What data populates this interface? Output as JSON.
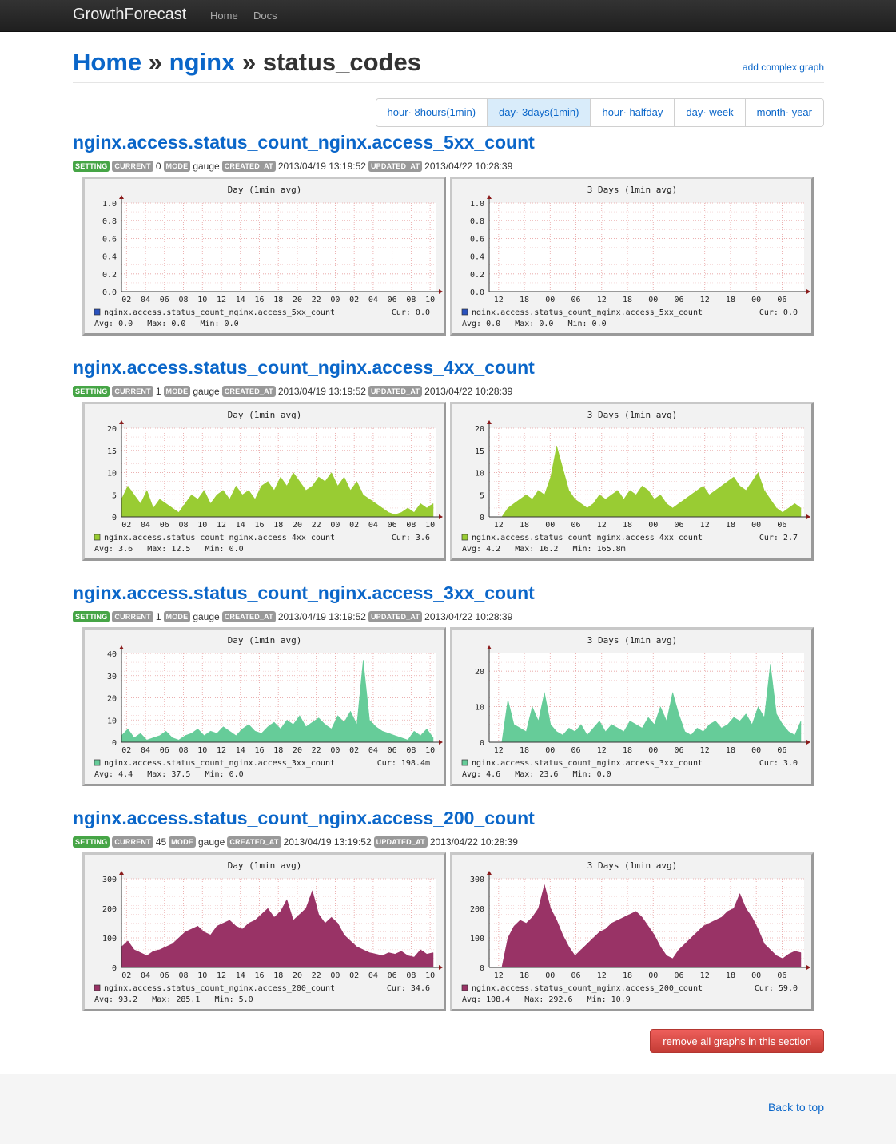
{
  "navbar": {
    "brand": "GrowthForecast",
    "links": [
      "Home",
      "Docs"
    ]
  },
  "page": {
    "breadcrumb": [
      {
        "label": "Home"
      },
      {
        "label": "nginx"
      },
      {
        "label": "status_codes"
      }
    ],
    "separator": "»",
    "add_complex_label": "add complex graph"
  },
  "terms": [
    {
      "label": "hour· 8hours(1min)",
      "active": false
    },
    {
      "label": "day· 3days(1min)",
      "active": true
    },
    {
      "label": "hour· halfday",
      "active": false
    },
    {
      "label": "day· week",
      "active": false
    },
    {
      "label": "month· year",
      "active": false
    }
  ],
  "meta_labels": {
    "setting": "SETTING",
    "current": "CURRENT",
    "mode": "MODE",
    "created": "CREATED_AT",
    "updated": "UPDATED_AT"
  },
  "chart_axes": {
    "day_xticks": [
      "02",
      "04",
      "06",
      "08",
      "10",
      "12",
      "14",
      "16",
      "18",
      "20",
      "22",
      "00",
      "02",
      "04",
      "06",
      "08",
      "10"
    ],
    "threeday_xticks": [
      "12",
      "18",
      "00",
      "06",
      "12",
      "18",
      "00",
      "06",
      "12",
      "18",
      "00",
      "06"
    ],
    "avg_label": "Avg:",
    "max_label": "Max:",
    "min_label": "Min:",
    "cur_label": "Cur:"
  },
  "graphs": [
    {
      "title": "nginx.access.status_count_nginx.access_5xx_count",
      "current": "0",
      "mode": "gauge",
      "created_at": "2013/04/19 13:19:52",
      "updated_at": "2013/04/22 10:28:39",
      "color": "#2a52be",
      "charts": [
        {
          "period_title": "Day (1min avg)",
          "legend": "nginx.access.status_count_nginx.access_5xx_count",
          "cur": "0.0",
          "avg": "0.0",
          "max": "0.0",
          "min": "0.0"
        },
        {
          "period_title": "3 Days (1min avg)",
          "legend": "nginx.access.status_count_nginx.access_5xx_count",
          "cur": "0.0",
          "avg": "0.0",
          "max": "0.0",
          "min": "0.0"
        }
      ]
    },
    {
      "title": "nginx.access.status_count_nginx.access_4xx_count",
      "current": "1",
      "mode": "gauge",
      "created_at": "2013/04/19 13:19:52",
      "updated_at": "2013/04/22 10:28:39",
      "color": "#99cc33",
      "charts": [
        {
          "period_title": "Day (1min avg)",
          "legend": "nginx.access.status_count_nginx.access_4xx_count",
          "cur": "3.6",
          "avg": "3.6",
          "max": "12.5",
          "min": "0.0"
        },
        {
          "period_title": "3 Days (1min avg)",
          "legend": "nginx.access.status_count_nginx.access_4xx_count",
          "cur": "2.7",
          "avg": "4.2",
          "max": "16.2",
          "min": "165.8m"
        }
      ]
    },
    {
      "title": "nginx.access.status_count_nginx.access_3xx_count",
      "current": "1",
      "mode": "gauge",
      "created_at": "2013/04/19 13:19:52",
      "updated_at": "2013/04/22 10:28:39",
      "color": "#66cc99",
      "charts": [
        {
          "period_title": "Day (1min avg)",
          "legend": "nginx.access.status_count_nginx.access_3xx_count",
          "cur": "198.4m",
          "avg": "4.4",
          "max": "37.5",
          "min": "0.0"
        },
        {
          "period_title": "3 Days (1min avg)",
          "legend": "nginx.access.status_count_nginx.access_3xx_count",
          "cur": "3.0",
          "avg": "4.6",
          "max": "23.6",
          "min": "0.0"
        }
      ]
    },
    {
      "title": "nginx.access.status_count_nginx.access_200_count",
      "current": "45",
      "mode": "gauge",
      "created_at": "2013/04/19 13:19:52",
      "updated_at": "2013/04/22 10:28:39",
      "color": "#993366",
      "charts": [
        {
          "period_title": "Day (1min avg)",
          "legend": "nginx.access.status_count_nginx.access_200_count",
          "cur": "34.6",
          "avg": "93.2",
          "max": "285.1",
          "min": "5.0"
        },
        {
          "period_title": "3 Days (1min avg)",
          "legend": "nginx.access.status_count_nginx.access_200_count",
          "cur": "59.0",
          "avg": "108.4",
          "max": "292.6",
          "min": "10.9"
        }
      ]
    }
  ],
  "chart_data": [
    {
      "type": "area",
      "title": "Day (1min avg)",
      "series": [
        {
          "name": "nginx.access.status_count_nginx.access_5xx_count",
          "values": [
            0,
            0,
            0,
            0,
            0,
            0,
            0,
            0,
            0,
            0,
            0,
            0,
            0,
            0,
            0,
            0,
            0,
            0,
            0,
            0,
            0,
            0,
            0,
            0,
            0,
            0,
            0,
            0,
            0,
            0,
            0,
            0,
            0,
            0,
            0,
            0,
            0,
            0,
            0,
            0,
            0,
            0,
            0,
            0,
            0,
            0,
            0,
            0,
            0,
            0
          ]
        }
      ],
      "ylim": [
        0,
        1.0
      ],
      "yticks": [
        "0.0",
        "0.2",
        "0.4",
        "0.6",
        "0.8",
        "1.0"
      ]
    },
    {
      "type": "area",
      "title": "3 Days (1min avg)",
      "series": [
        {
          "name": "nginx.access.status_count_nginx.access_5xx_count",
          "values": [
            0,
            0,
            0,
            0,
            0,
            0,
            0,
            0,
            0,
            0,
            0,
            0,
            0,
            0,
            0,
            0,
            0,
            0,
            0,
            0,
            0,
            0,
            0,
            0,
            0,
            0,
            0,
            0,
            0,
            0,
            0,
            0,
            0,
            0,
            0,
            0,
            0,
            0,
            0,
            0,
            0,
            0,
            0,
            0,
            0,
            0,
            0,
            0,
            0,
            0
          ]
        }
      ],
      "ylim": [
        0,
        1.0
      ],
      "yticks": [
        "0.0",
        "0.2",
        "0.4",
        "0.6",
        "0.8",
        "1.0"
      ]
    },
    {
      "type": "area",
      "title": "Day (1min avg)",
      "series": [
        {
          "name": "nginx.access.status_count_nginx.access_4xx_count",
          "values": [
            4,
            7,
            5,
            3,
            6,
            2,
            4,
            3,
            2,
            1,
            3,
            5,
            4,
            6,
            3,
            5,
            6,
            4,
            7,
            5,
            6,
            4,
            7,
            8,
            6,
            9,
            7,
            10,
            8,
            6,
            7,
            9,
            8,
            10,
            7,
            9,
            6,
            8,
            5,
            4,
            3,
            2,
            1,
            0.5,
            1,
            2,
            1,
            3,
            2,
            3
          ]
        }
      ],
      "ylim": [
        0,
        20
      ],
      "yticks": [
        "0",
        "5",
        "10",
        "15",
        "20"
      ]
    },
    {
      "type": "area",
      "title": "3 Days (1min avg)",
      "series": [
        {
          "name": "nginx.access.status_count_nginx.access_4xx_count",
          "values": [
            0,
            2,
            3,
            4,
            5,
            4,
            6,
            5,
            9,
            16,
            11,
            6,
            4,
            3,
            2,
            3,
            5,
            4,
            5,
            6,
            4,
            6,
            5,
            7,
            6,
            4,
            5,
            3,
            2,
            3,
            4,
            5,
            6,
            7,
            5,
            6,
            7,
            8,
            9,
            7,
            6,
            8,
            10,
            6,
            4,
            2,
            1,
            2,
            3,
            2
          ]
        }
      ],
      "ylim": [
        0,
        20
      ],
      "yticks": [
        "0",
        "5",
        "10",
        "15",
        "20"
      ]
    },
    {
      "type": "area",
      "title": "Day (1min avg)",
      "series": [
        {
          "name": "nginx.access.status_count_nginx.access_3xx_count",
          "values": [
            3,
            6,
            2,
            4,
            1,
            2,
            3,
            5,
            2,
            1,
            3,
            4,
            6,
            3,
            5,
            4,
            7,
            5,
            3,
            6,
            8,
            5,
            4,
            7,
            9,
            6,
            10,
            8,
            12,
            7,
            9,
            11,
            8,
            6,
            12,
            9,
            14,
            8,
            37,
            10,
            7,
            5,
            4,
            3,
            2,
            1,
            5,
            3,
            6,
            2
          ]
        }
      ],
      "ylim": [
        0,
        40
      ],
      "yticks": [
        "0",
        "10",
        "20",
        "30",
        "40"
      ]
    },
    {
      "type": "area",
      "title": "3 Days (1min avg)",
      "series": [
        {
          "name": "nginx.access.status_count_nginx.access_3xx_count",
          "values": [
            0,
            12,
            5,
            4,
            3,
            10,
            6,
            14,
            5,
            3,
            2,
            4,
            3,
            5,
            2,
            4,
            6,
            3,
            5,
            4,
            3,
            6,
            5,
            4,
            7,
            5,
            10,
            6,
            14,
            8,
            3,
            2,
            4,
            3,
            5,
            6,
            4,
            5,
            7,
            6,
            8,
            5,
            10,
            7,
            22,
            8,
            5,
            3,
            2,
            6
          ]
        }
      ],
      "ylim": [
        0,
        25
      ],
      "yticks": [
        "0",
        "10",
        "20"
      ]
    },
    {
      "type": "area",
      "title": "Day (1min avg)",
      "series": [
        {
          "name": "nginx.access.status_count_nginx.access_200_count",
          "values": [
            70,
            90,
            60,
            50,
            40,
            55,
            60,
            70,
            80,
            100,
            120,
            130,
            140,
            120,
            110,
            140,
            150,
            160,
            140,
            130,
            150,
            160,
            180,
            200,
            170,
            190,
            230,
            160,
            180,
            200,
            260,
            180,
            150,
            170,
            150,
            110,
            90,
            70,
            60,
            50,
            45,
            40,
            50,
            45,
            55,
            40,
            35,
            60,
            45,
            50
          ]
        }
      ],
      "ylim": [
        0,
        300
      ],
      "yticks": [
        "0",
        "100",
        "200",
        "300"
      ]
    },
    {
      "type": "area",
      "title": "3 Days (1min avg)",
      "series": [
        {
          "name": "nginx.access.status_count_nginx.access_200_count",
          "values": [
            0,
            100,
            140,
            160,
            150,
            170,
            200,
            280,
            200,
            160,
            110,
            70,
            40,
            60,
            80,
            100,
            120,
            130,
            150,
            160,
            170,
            180,
            190,
            170,
            140,
            110,
            70,
            40,
            30,
            60,
            80,
            100,
            120,
            140,
            150,
            160,
            170,
            190,
            200,
            250,
            200,
            170,
            130,
            80,
            60,
            40,
            30,
            45,
            55,
            50
          ]
        }
      ],
      "ylim": [
        0,
        300
      ],
      "yticks": [
        "0",
        "100",
        "200",
        "300"
      ]
    }
  ],
  "remove_label": "remove all graphs in this section",
  "footer": {
    "back_to_top": "Back to top"
  }
}
